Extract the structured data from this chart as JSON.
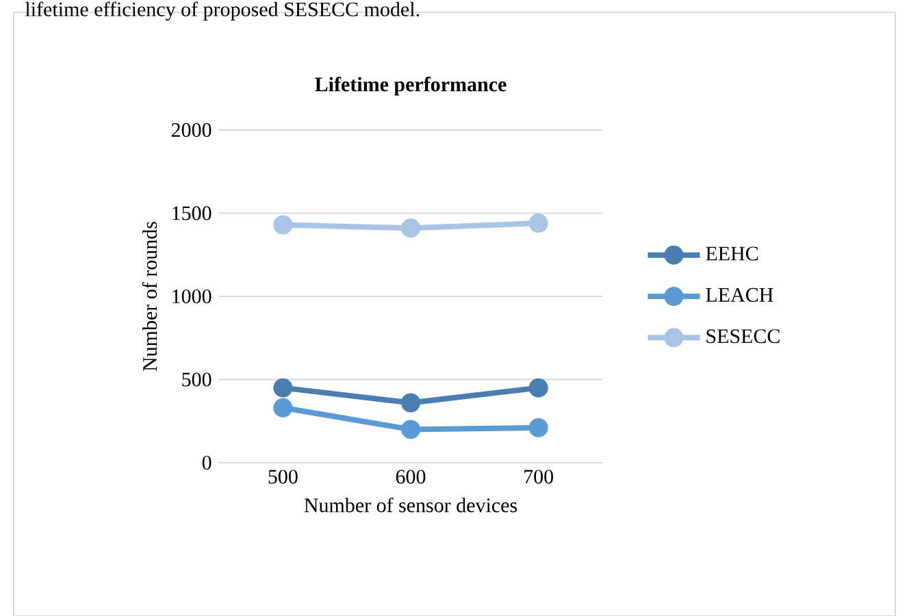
{
  "chart_data": {
    "type": "line",
    "title": "Lifetime performance",
    "xlabel": "Number of sensor devices",
    "ylabel": "Number of rounds",
    "annotations": [
      "lifetime efficiency of proposed SESECC model."
    ],
    "categories": [
      "500",
      "600",
      "700"
    ],
    "series": [
      {
        "name": "EEHC",
        "color": "#4a7eb0",
        "values": [
          450,
          360,
          450
        ]
      },
      {
        "name": "LEACH",
        "color": "#5b9bd5",
        "values": [
          330,
          200,
          210
        ]
      },
      {
        "name": "SESECC",
        "color": "#a9c4e4",
        "values": [
          1430,
          1410,
          1440
        ]
      }
    ],
    "ylim": [
      0,
      2000
    ],
    "yticks": [
      0,
      500,
      1000,
      1500,
      2000
    ],
    "grid": "y",
    "legend": "right",
    "marker": "circle",
    "line_style": "solid"
  }
}
